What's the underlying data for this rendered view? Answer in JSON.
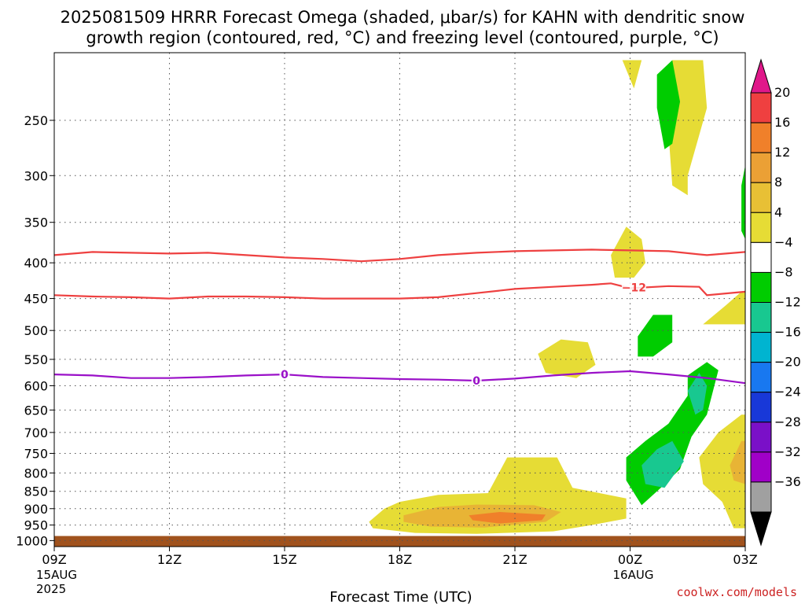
{
  "chart_data": {
    "type": "heatmap",
    "title": "2025081509 HRRR Forecast Omega (shaded, μbar/s) for KAHN with dendritic snow",
    "subtitle": "growth region (contoured, red, °C) and freezing level (contoured, purple, °C)",
    "xlabel": "Forecast Time (UTC)",
    "credit": "coolwx.com/models",
    "x_ticks": [
      {
        "hours": 0,
        "label": "09Z",
        "date": "15AUG",
        "year": "2025"
      },
      {
        "hours": 3,
        "label": "12Z"
      },
      {
        "hours": 6,
        "label": "15Z"
      },
      {
        "hours": 9,
        "label": "18Z"
      },
      {
        "hours": 12,
        "label": "21Z"
      },
      {
        "hours": 15,
        "label": "00Z",
        "date": "16AUG"
      },
      {
        "hours": 18,
        "label": "03Z"
      }
    ],
    "y_ticks": [
      250,
      300,
      350,
      400,
      450,
      500,
      550,
      600,
      650,
      700,
      750,
      800,
      850,
      900,
      950,
      1000
    ],
    "y_scale": "log-pressure",
    "y_range": [
      1020,
      200
    ],
    "colorbar": {
      "ticks": [
        "20",
        "16",
        "12",
        "8",
        "4",
        "−4",
        "−8",
        "−12",
        "−16",
        "−20",
        "−24",
        "−28",
        "−32",
        "−36"
      ],
      "colors": [
        "#ef4040",
        "#f0802a",
        "#eba035",
        "#e8c035",
        "#e6dc35",
        "#ffffff",
        "#00cc00",
        "#18c890",
        "#00b4d0",
        "#1878f0",
        "#1838d8",
        "#7a10c8",
        "#a000c8",
        "#a0a0a0"
      ],
      "top_arrow": "#e0188a",
      "bottom_arrow": "#000000"
    },
    "contours": [
      {
        "label": "−12",
        "color": "#ee4040",
        "points": [
          [
            0,
            445
          ],
          [
            1,
            447
          ],
          [
            2,
            448
          ],
          [
            3,
            450
          ],
          [
            4,
            447
          ],
          [
            5,
            447
          ],
          [
            6,
            448
          ],
          [
            7,
            450
          ],
          [
            8,
            450
          ],
          [
            9,
            450
          ],
          [
            10,
            448
          ],
          [
            11,
            442
          ],
          [
            12,
            436
          ],
          [
            13,
            433
          ],
          [
            14,
            430
          ],
          [
            14.5,
            428
          ],
          [
            15,
            435
          ],
          [
            16,
            432
          ],
          [
            16.8,
            433
          ],
          [
            17,
            445
          ],
          [
            18,
            440
          ]
        ]
      },
      {
        "label": "−12",
        "color": "#ee4040",
        "points": [
          [
            0,
            390
          ],
          [
            1,
            386
          ],
          [
            2,
            387
          ],
          [
            3,
            388
          ],
          [
            4,
            387
          ],
          [
            5,
            390
          ],
          [
            6,
            393
          ],
          [
            7,
            395
          ],
          [
            8,
            398
          ],
          [
            9,
            395
          ],
          [
            10,
            390
          ],
          [
            11,
            387
          ],
          [
            12,
            385
          ],
          [
            13,
            384
          ],
          [
            14,
            383
          ],
          [
            15,
            384
          ],
          [
            16,
            385
          ],
          [
            17,
            390
          ],
          [
            18,
            386
          ]
        ]
      },
      {
        "label": "0",
        "color": "#9a10c8",
        "points": [
          [
            0,
            578
          ],
          [
            1,
            580
          ],
          [
            2,
            585
          ],
          [
            3,
            585
          ],
          [
            4,
            583
          ],
          [
            5,
            580
          ],
          [
            6,
            578
          ],
          [
            7,
            583
          ],
          [
            8,
            585
          ],
          [
            9,
            587
          ],
          [
            10,
            588
          ],
          [
            11,
            590
          ],
          [
            12,
            586
          ],
          [
            13,
            580
          ],
          [
            14,
            575
          ],
          [
            15,
            572
          ],
          [
            16,
            578
          ],
          [
            17,
            585
          ],
          [
            18,
            595
          ]
        ]
      }
    ],
    "contour_labels": [
      {
        "text": "−12",
        "hours": 15.1,
        "pressure": 434
      },
      {
        "text": "0",
        "hours": 6.0,
        "pressure": 578
      },
      {
        "text": "0",
        "hours": 11.0,
        "pressure": 590
      }
    ],
    "shaded_regions": [
      {
        "level": "4",
        "color": "#e6dc35",
        "points": [
          [
            8.6,
            900
          ],
          [
            9,
            880
          ],
          [
            10,
            860
          ],
          [
            11.3,
            855
          ],
          [
            11.8,
            760
          ],
          [
            13.1,
            760
          ],
          [
            13.5,
            840
          ],
          [
            14.9,
            870
          ],
          [
            14.9,
            930
          ],
          [
            14,
            950
          ],
          [
            13,
            970
          ],
          [
            11,
            978
          ],
          [
            9.4,
            975
          ],
          [
            8.3,
            960
          ],
          [
            8.2,
            940
          ]
        ]
      },
      {
        "level": "8",
        "color": "#e8b435",
        "points": [
          [
            9.1,
            920
          ],
          [
            10,
            895
          ],
          [
            11,
            888
          ],
          [
            12.5,
            890
          ],
          [
            13.2,
            910
          ],
          [
            12.8,
            940
          ],
          [
            11.2,
            958
          ],
          [
            9.8,
            955
          ],
          [
            9.1,
            940
          ]
        ]
      },
      {
        "level": "12",
        "color": "#f0802a",
        "points": [
          [
            10.8,
            920
          ],
          [
            11.6,
            910
          ],
          [
            12.8,
            918
          ],
          [
            12.7,
            935
          ],
          [
            11.6,
            945
          ],
          [
            10.9,
            935
          ]
        ]
      },
      {
        "level": "4",
        "color": "#e6dc35",
        "points": [
          [
            12.6,
            540
          ],
          [
            13.2,
            515
          ],
          [
            13.9,
            520
          ],
          [
            14.1,
            560
          ],
          [
            13.6,
            585
          ],
          [
            12.8,
            575
          ]
        ]
      },
      {
        "level": "4",
        "color": "#e6dc35",
        "points": [
          [
            14.5,
            390
          ],
          [
            14.9,
            355
          ],
          [
            15.3,
            370
          ],
          [
            15.4,
            400
          ],
          [
            15.1,
            420
          ],
          [
            14.6,
            420
          ]
        ]
      },
      {
        "level": "4",
        "color": "#e6dc35",
        "points": [
          [
            14.8,
            205
          ],
          [
            15.3,
            205
          ],
          [
            15.1,
            225
          ]
        ]
      },
      {
        "level": "4",
        "color": "#e6dc35",
        "points": [
          [
            16.1,
            205
          ],
          [
            16.9,
            205
          ],
          [
            17,
            240
          ],
          [
            16.5,
            300
          ],
          [
            16.5,
            320
          ],
          [
            16.1,
            310
          ],
          [
            16,
            260
          ]
        ]
      },
      {
        "level": "4",
        "color": "#e6dc35",
        "points": [
          [
            16.9,
            490
          ],
          [
            17.5,
            460
          ],
          [
            17.9,
            440
          ],
          [
            18,
            440
          ],
          [
            18,
            490
          ]
        ]
      },
      {
        "level": "4",
        "color": "#e6dc35",
        "points": [
          [
            16.8,
            760
          ],
          [
            17.3,
            700
          ],
          [
            17.9,
            660
          ],
          [
            18,
            660
          ],
          [
            18,
            960
          ],
          [
            17.7,
            960
          ],
          [
            17.4,
            880
          ],
          [
            16.9,
            830
          ]
        ]
      },
      {
        "level": "8",
        "color": "#e8b435",
        "points": [
          [
            17.6,
            780
          ],
          [
            17.9,
            720
          ],
          [
            18,
            720
          ],
          [
            18,
            830
          ],
          [
            17.7,
            820
          ]
        ]
      },
      {
        "level": "-4",
        "color": "#00cc00",
        "points": [
          [
            15.7,
            215
          ],
          [
            16.1,
            205
          ],
          [
            16.3,
            235
          ],
          [
            16.1,
            270
          ],
          [
            15.9,
            275
          ],
          [
            15.7,
            240
          ]
        ]
      },
      {
        "level": "-4",
        "color": "#00cc00",
        "points": [
          [
            15.2,
            510
          ],
          [
            15.6,
            475
          ],
          [
            16.1,
            475
          ],
          [
            16.1,
            520
          ],
          [
            15.6,
            545
          ],
          [
            15.2,
            545
          ]
        ]
      },
      {
        "level": "-4",
        "color": "#00cc00",
        "points": [
          [
            17.9,
            310
          ],
          [
            18,
            290
          ],
          [
            18,
            370
          ],
          [
            17.9,
            360
          ]
        ]
      },
      {
        "level": "-4",
        "color": "#00cc00",
        "points": [
          [
            14.9,
            760
          ],
          [
            15.4,
            720
          ],
          [
            16,
            680
          ],
          [
            16.5,
            620
          ],
          [
            16.5,
            580
          ],
          [
            17,
            555
          ],
          [
            17.3,
            570
          ],
          [
            17,
            660
          ],
          [
            16.6,
            710
          ],
          [
            16.3,
            790
          ],
          [
            15.8,
            840
          ],
          [
            15.3,
            890
          ],
          [
            14.9,
            820
          ]
        ]
      },
      {
        "level": "-8",
        "color": "#18c890",
        "points": [
          [
            15.3,
            780
          ],
          [
            15.7,
            740
          ],
          [
            16.1,
            720
          ],
          [
            16.4,
            770
          ],
          [
            15.9,
            840
          ],
          [
            15.4,
            830
          ]
        ]
      },
      {
        "level": "-8",
        "color": "#18c890",
        "points": [
          [
            16.5,
            610
          ],
          [
            16.8,
            575
          ],
          [
            17.0,
            600
          ],
          [
            16.9,
            650
          ],
          [
            16.7,
            660
          ]
        ]
      }
    ],
    "ground": {
      "color": "#a0521d",
      "top_pressure": 985
    }
  }
}
